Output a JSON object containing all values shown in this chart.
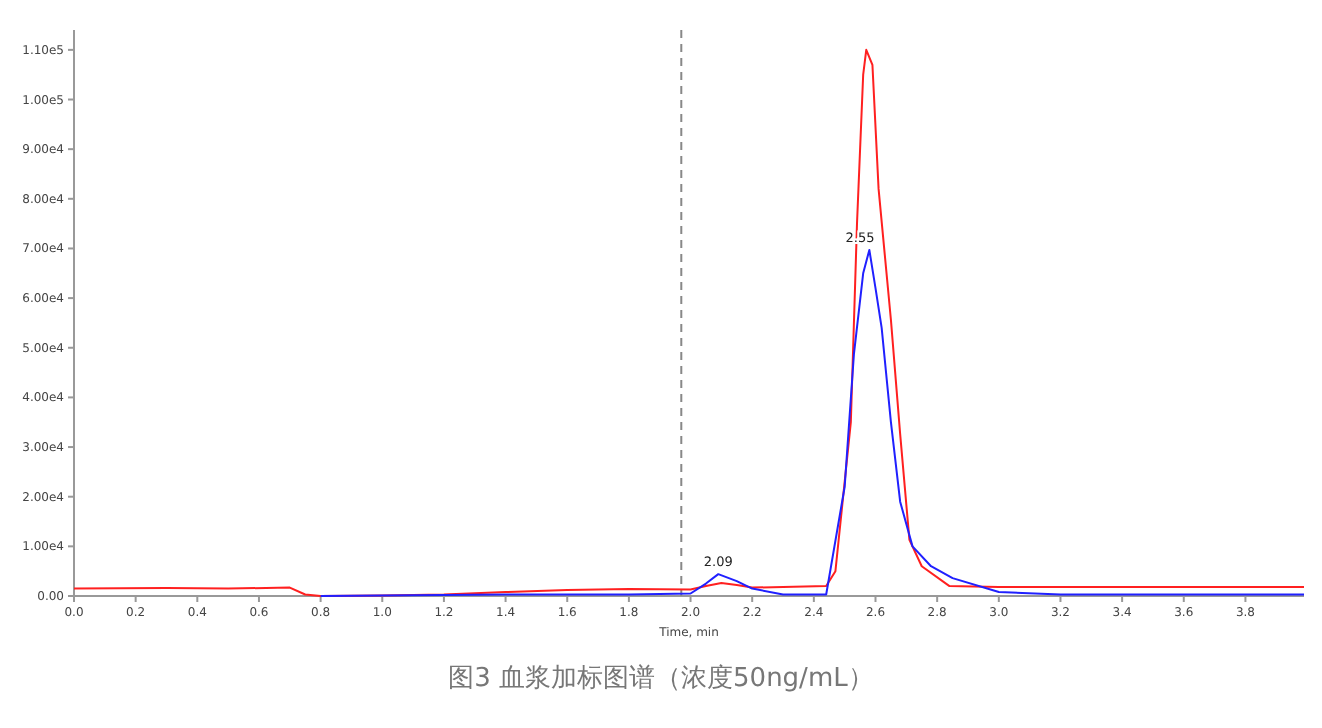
{
  "chart_data": {
    "type": "line",
    "xlabel": "Time, min",
    "xlim": [
      0,
      3.99
    ],
    "ylim": [
      0,
      114000
    ],
    "xticks": [
      {
        "value": 0,
        "label": "0.0"
      },
      {
        "value": 0.2,
        "label": "0.2"
      },
      {
        "value": 0.4,
        "label": "0.4"
      },
      {
        "value": 0.6,
        "label": "0.6"
      },
      {
        "value": 0.8,
        "label": "0.8"
      },
      {
        "value": 1.0,
        "label": "1.0"
      },
      {
        "value": 1.2,
        "label": "1.2"
      },
      {
        "value": 1.4,
        "label": "1.4"
      },
      {
        "value": 1.6,
        "label": "1.6"
      },
      {
        "value": 1.8,
        "label": "1.8"
      },
      {
        "value": 2.0,
        "label": "2.0"
      },
      {
        "value": 2.2,
        "label": "2.2"
      },
      {
        "value": 2.4,
        "label": "2.4"
      },
      {
        "value": 2.6,
        "label": "2.6"
      },
      {
        "value": 2.8,
        "label": "2.8"
      },
      {
        "value": 3.0,
        "label": "3.0"
      },
      {
        "value": 3.2,
        "label": "3.2"
      },
      {
        "value": 3.4,
        "label": "3.4"
      },
      {
        "value": 3.6,
        "label": "3.6"
      },
      {
        "value": 3.8,
        "label": "3.8"
      }
    ],
    "yticks": [
      {
        "value": 0,
        "label": "0.00"
      },
      {
        "value": 10000,
        "label": "1.00e4"
      },
      {
        "value": 20000,
        "label": "2.00e4"
      },
      {
        "value": 30000,
        "label": "3.00e4"
      },
      {
        "value": 40000,
        "label": "4.00e4"
      },
      {
        "value": 50000,
        "label": "5.00e4"
      },
      {
        "value": 60000,
        "label": "6.00e4"
      },
      {
        "value": 70000,
        "label": "7.00e4"
      },
      {
        "value": 80000,
        "label": "8.00e4"
      },
      {
        "value": 90000,
        "label": "9.00e4"
      },
      {
        "value": 100000,
        "label": "1.00e5"
      },
      {
        "value": 110000,
        "label": "1.10e5"
      }
    ],
    "series": [
      {
        "color": "#ff2020",
        "x": [
          0,
          0.3,
          0.5,
          0.7,
          0.75,
          0.8,
          1.0,
          1.2,
          1.4,
          1.6,
          1.8,
          2.0,
          2.05,
          2.1,
          2.15,
          2.2,
          2.3,
          2.44,
          2.47,
          2.52,
          2.54,
          2.56,
          2.57,
          2.59,
          2.61,
          2.65,
          2.68,
          2.71,
          2.75,
          2.84,
          3.0,
          3.5,
          3.99
        ],
        "values": [
          1500,
          1600,
          1500,
          1700,
          300,
          0,
          100,
          300,
          800,
          1200,
          1400,
          1300,
          2000,
          2600,
          2200,
          1700,
          1800,
          2000,
          5000,
          35000,
          75000,
          105000,
          110000,
          107000,
          82000,
          55600,
          32600,
          11300,
          6000,
          2000,
          1800,
          1800,
          1800
        ]
      },
      {
        "color": "#2020ff",
        "x": [
          0.8,
          1.0,
          1.2,
          1.4,
          1.6,
          1.8,
          2.0,
          2.05,
          2.09,
          2.15,
          2.2,
          2.3,
          2.44,
          2.5,
          2.53,
          2.56,
          2.58,
          2.6,
          2.62,
          2.65,
          2.68,
          2.72,
          2.78,
          2.85,
          3.0,
          3.2,
          3.5,
          3.99
        ],
        "values": [
          0,
          100,
          200,
          300,
          300,
          300,
          500,
          2500,
          4400,
          3000,
          1500,
          300,
          300,
          22000,
          48700,
          65000,
          69700,
          62000,
          54000,
          35000,
          19000,
          10000,
          6000,
          3600,
          800,
          300,
          300,
          300
        ]
      }
    ],
    "ref_lines": [
      {
        "axis": "x",
        "value": 1.97,
        "color": "#888888",
        "line_style": "dashed"
      }
    ],
    "annotations": [
      {
        "text": "2.09",
        "x": 2.09,
        "y": 4400
      },
      {
        "text": "2.55",
        "x": 2.55,
        "y": 69700
      },
      "图3 血浆加标图谱（浓度50ng/mL）"
    ]
  }
}
